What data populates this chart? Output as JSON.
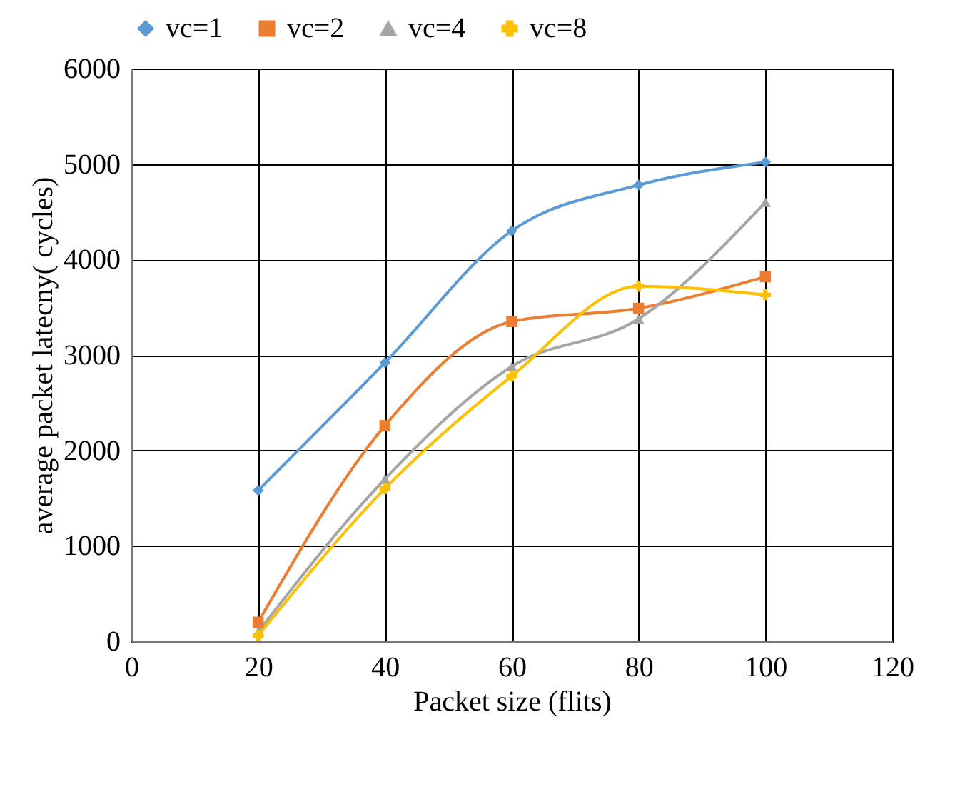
{
  "chart_data": {
    "type": "line",
    "xlabel": "Packet size  (flits)",
    "ylabel": "average packet latecny( cycles)",
    "x": [
      20,
      40,
      60,
      80,
      100
    ],
    "series": [
      {
        "name": "vc=1",
        "color": "#5b9bd5",
        "marker": "diamond",
        "values": [
          1580,
          2920,
          4300,
          4780,
          5020
        ]
      },
      {
        "name": "vc=2",
        "color": "#ed7d31",
        "marker": "square",
        "values": [
          200,
          2260,
          3350,
          3490,
          3820
        ]
      },
      {
        "name": "vc=4",
        "color": "#a5a5a5",
        "marker": "triangle",
        "values": [
          100,
          1700,
          2880,
          3380,
          4600
        ]
      },
      {
        "name": "vc=8",
        "color": "#ffc000",
        "marker": "cross",
        "values": [
          60,
          1600,
          2780,
          3720,
          3630
        ]
      }
    ],
    "xlim": [
      0,
      120
    ],
    "xticks": [
      0,
      20,
      40,
      60,
      80,
      100,
      120
    ],
    "ylim": [
      0,
      6000
    ],
    "yticks": [
      0,
      1000,
      2000,
      3000,
      4000,
      5000,
      6000
    ],
    "grid": true,
    "legend": "top",
    "line_style": "solid"
  }
}
